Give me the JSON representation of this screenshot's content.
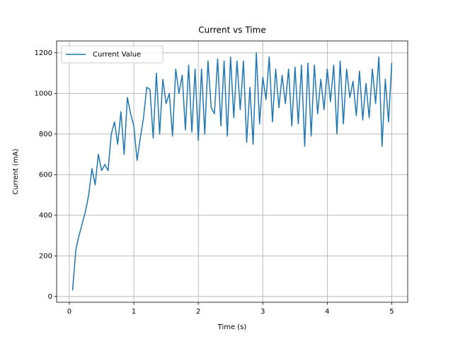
{
  "chart_data": {
    "type": "line",
    "title": "Current vs Time",
    "xlabel": "Time (s)",
    "ylabel": "Current (mA)",
    "x": [
      0.05,
      0.1,
      0.15,
      0.2,
      0.25,
      0.3,
      0.35,
      0.4,
      0.45,
      0.5,
      0.55,
      0.6,
      0.65,
      0.7,
      0.75,
      0.8,
      0.85,
      0.9,
      0.95,
      1.0,
      1.05,
      1.1,
      1.15,
      1.2,
      1.25,
      1.3,
      1.35,
      1.4,
      1.45,
      1.5,
      1.55,
      1.6,
      1.65,
      1.7,
      1.75,
      1.8,
      1.85,
      1.9,
      1.95,
      2.0,
      2.05,
      2.1,
      2.15,
      2.2,
      2.25,
      2.3,
      2.35,
      2.4,
      2.45,
      2.5,
      2.55,
      2.6,
      2.65,
      2.7,
      2.75,
      2.8,
      2.85,
      2.9,
      2.95,
      3.0,
      3.05,
      3.1,
      3.15,
      3.2,
      3.25,
      3.3,
      3.35,
      3.4,
      3.45,
      3.5,
      3.55,
      3.6,
      3.65,
      3.7,
      3.75,
      3.8,
      3.85,
      3.9,
      3.95,
      4.0,
      4.05,
      4.1,
      4.15,
      4.2,
      4.25,
      4.3,
      4.35,
      4.4,
      4.45,
      4.5,
      4.55,
      4.6,
      4.65,
      4.7,
      4.75,
      4.8,
      4.85,
      4.9,
      4.95,
      5.0
    ],
    "series": [
      {
        "name": "Current Value",
        "color": "#1f77b4",
        "values": [
          30,
          230,
          300,
          360,
          420,
          500,
          630,
          550,
          700,
          620,
          650,
          620,
          800,
          860,
          750,
          910,
          700,
          980,
          900,
          840,
          670,
          780,
          880,
          1030,
          1020,
          780,
          1100,
          800,
          1070,
          950,
          1000,
          790,
          1120,
          1000,
          1090,
          820,
          1140,
          810,
          1120,
          770,
          1120,
          800,
          1160,
          930,
          900,
          1170,
          840,
          1160,
          790,
          1180,
          880,
          1160,
          920,
          1160,
          760,
          1030,
          750,
          1200,
          850,
          1080,
          970,
          1180,
          860,
          1120,
          930,
          1090,
          950,
          1120,
          840,
          1130,
          850,
          1140,
          740,
          1150,
          790,
          1140,
          900,
          1070,
          920,
          1120,
          960,
          1140,
          800,
          1160,
          850,
          1120,
          980,
          1060,
          890,
          1110,
          870,
          1050,
          880,
          1120,
          950,
          1180,
          740,
          1070,
          860,
          1150
        ]
      }
    ],
    "xlim": [
      -0.1975,
      5.2475
    ],
    "xticks": [
      0,
      1,
      2,
      3,
      4,
      5
    ],
    "ylim": [
      -28.5,
      1258.5
    ],
    "yticks": [
      0,
      200,
      400,
      600,
      800,
      1000,
      1200
    ],
    "grid": true,
    "legend": "upper left"
  }
}
